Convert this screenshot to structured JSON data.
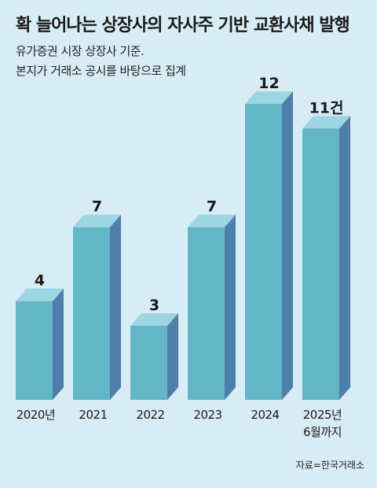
{
  "header": {
    "title": "확 늘어나는 상장사의 자사주 기반 교환사채 발행",
    "subtitle_line1": "유가증권 시장 상장사 기준.",
    "subtitle_line2": "본지가 거래소 공시를 바탕으로 집계"
  },
  "source": "자료=한국거래소",
  "colors": {
    "background": "#d7ecf4",
    "bar_front": "#62b6c6",
    "bar_top": "#9dd6e3",
    "bar_side": "#4f7eaa"
  },
  "chart_data": {
    "type": "bar",
    "categories": [
      "2020년",
      "2021",
      "2022",
      "2023",
      "2024",
      "2025년 6월까지"
    ],
    "category_lines": [
      [
        "2020년"
      ],
      [
        "2021"
      ],
      [
        "2022"
      ],
      [
        "2023"
      ],
      [
        "2024"
      ],
      [
        "2025년",
        "6월까지"
      ]
    ],
    "values": [
      4,
      7,
      3,
      7,
      12,
      11
    ],
    "value_labels": [
      "4",
      "7",
      "3",
      "7",
      "12",
      "11건"
    ],
    "title": "확 늘어나는 상장사의 자사주 기반 교환사채 발행",
    "xlabel": "",
    "ylabel": "",
    "ylim": [
      0,
      12
    ],
    "grid": false
  }
}
